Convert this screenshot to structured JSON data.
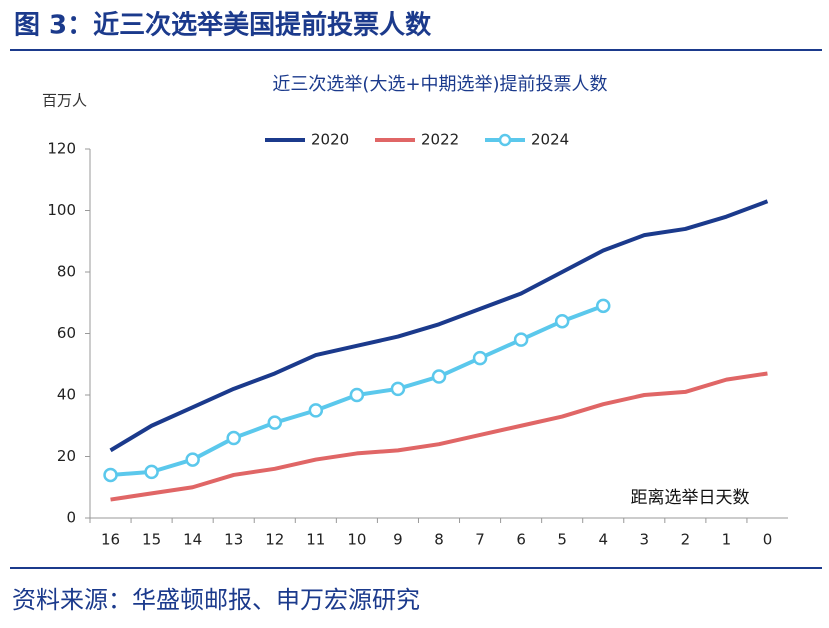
{
  "header": {
    "title": "图 3：近三次选举美国提前投票人数"
  },
  "chart_data": {
    "type": "line",
    "title": "近三次选举(大选+中期选举)提前投票人数",
    "ylabel": "百万人",
    "xlabel": "距离选举日天数",
    "categories": [
      "16",
      "15",
      "14",
      "13",
      "12",
      "11",
      "10",
      "9",
      "8",
      "7",
      "6",
      "5",
      "4",
      "3",
      "2",
      "1",
      "0"
    ],
    "series": [
      {
        "name": "2020",
        "color": "#1b3a8c",
        "values": [
          22,
          30,
          36,
          42,
          47,
          53,
          56,
          59,
          63,
          68,
          73,
          80,
          87,
          92,
          94,
          98,
          103
        ]
      },
      {
        "name": "2022",
        "color": "#e06666",
        "values": [
          6,
          8,
          10,
          14,
          16,
          19,
          21,
          22,
          24,
          27,
          30,
          33,
          37,
          40,
          41,
          45,
          47
        ]
      },
      {
        "name": "2024",
        "color": "#5bc8ec",
        "marker": "circle",
        "values": [
          14,
          15,
          19,
          26,
          31,
          35,
          40,
          42,
          46,
          52,
          58,
          64,
          69,
          null,
          null,
          null,
          null
        ]
      }
    ],
    "ylim": [
      0,
      120
    ],
    "yticks": [
      0,
      20,
      40,
      60,
      80,
      100,
      120
    ],
    "grid": false
  },
  "footer": {
    "source": "资料来源：华盛顿邮报、申万宏源研究"
  }
}
